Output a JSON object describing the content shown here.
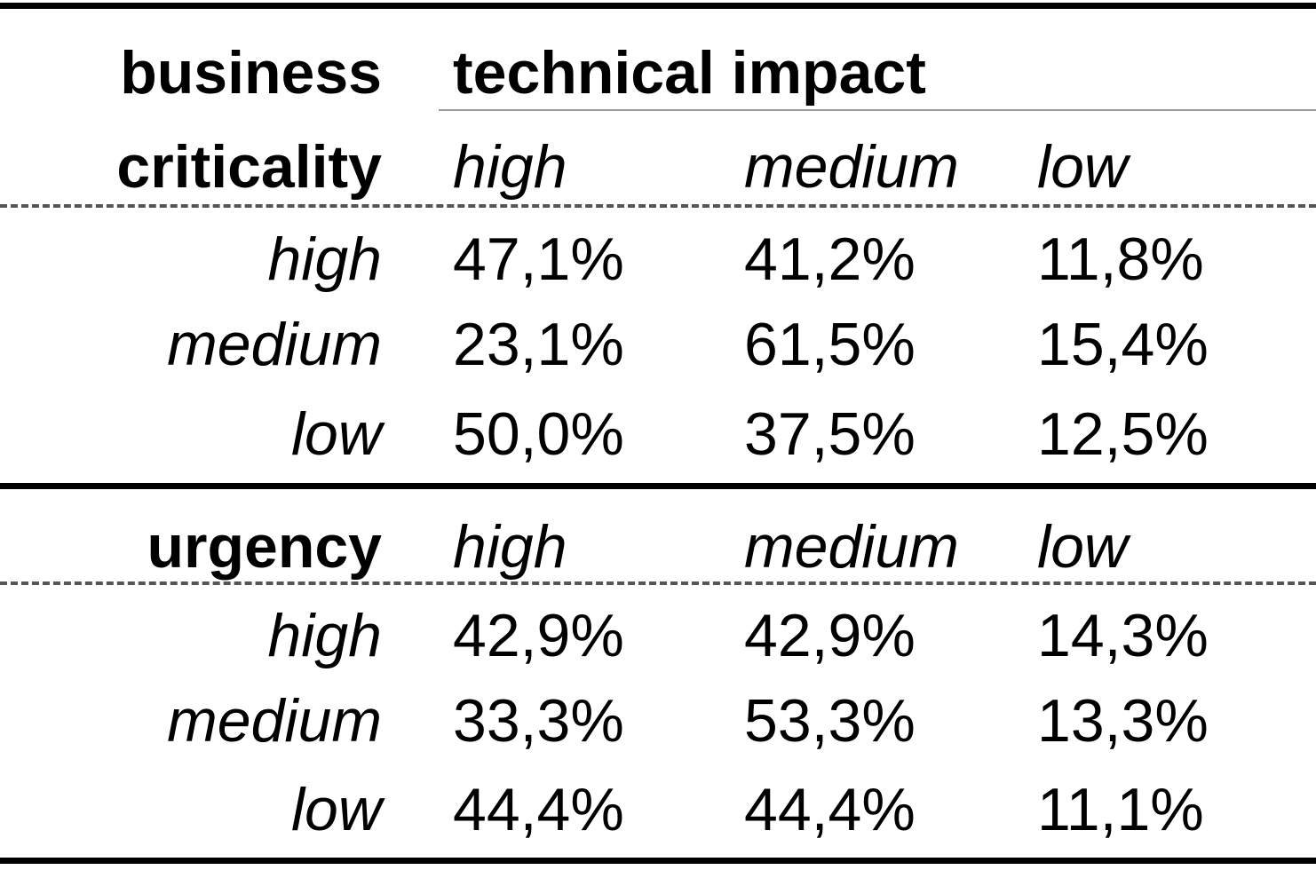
{
  "table": {
    "row_header_top": "business",
    "row_header_bottom_1": "criticality",
    "column_group_header": "technical impact",
    "columns": [
      "high",
      "medium",
      "low"
    ],
    "sections": [
      {
        "label": "",
        "rows": [
          {
            "label": "high",
            "values": [
              "47,1%",
              "41,2%",
              "11,8%"
            ]
          },
          {
            "label": "medium",
            "values": [
              "23,1%",
              "61,5%",
              "15,4%"
            ]
          },
          {
            "label": "low",
            "values": [
              "50,0%",
              "37,5%",
              "12,5%"
            ]
          }
        ]
      },
      {
        "label": "urgency",
        "columns": [
          "high",
          "medium",
          "low"
        ],
        "rows": [
          {
            "label": "high",
            "values": [
              "42,9%",
              "42,9%",
              "14,3%"
            ]
          },
          {
            "label": "medium",
            "values": [
              "33,3%",
              "53,3%",
              "13,3%"
            ]
          },
          {
            "label": "low",
            "values": [
              "44,4%",
              "44,4%",
              "11,1%"
            ]
          }
        ]
      }
    ]
  }
}
